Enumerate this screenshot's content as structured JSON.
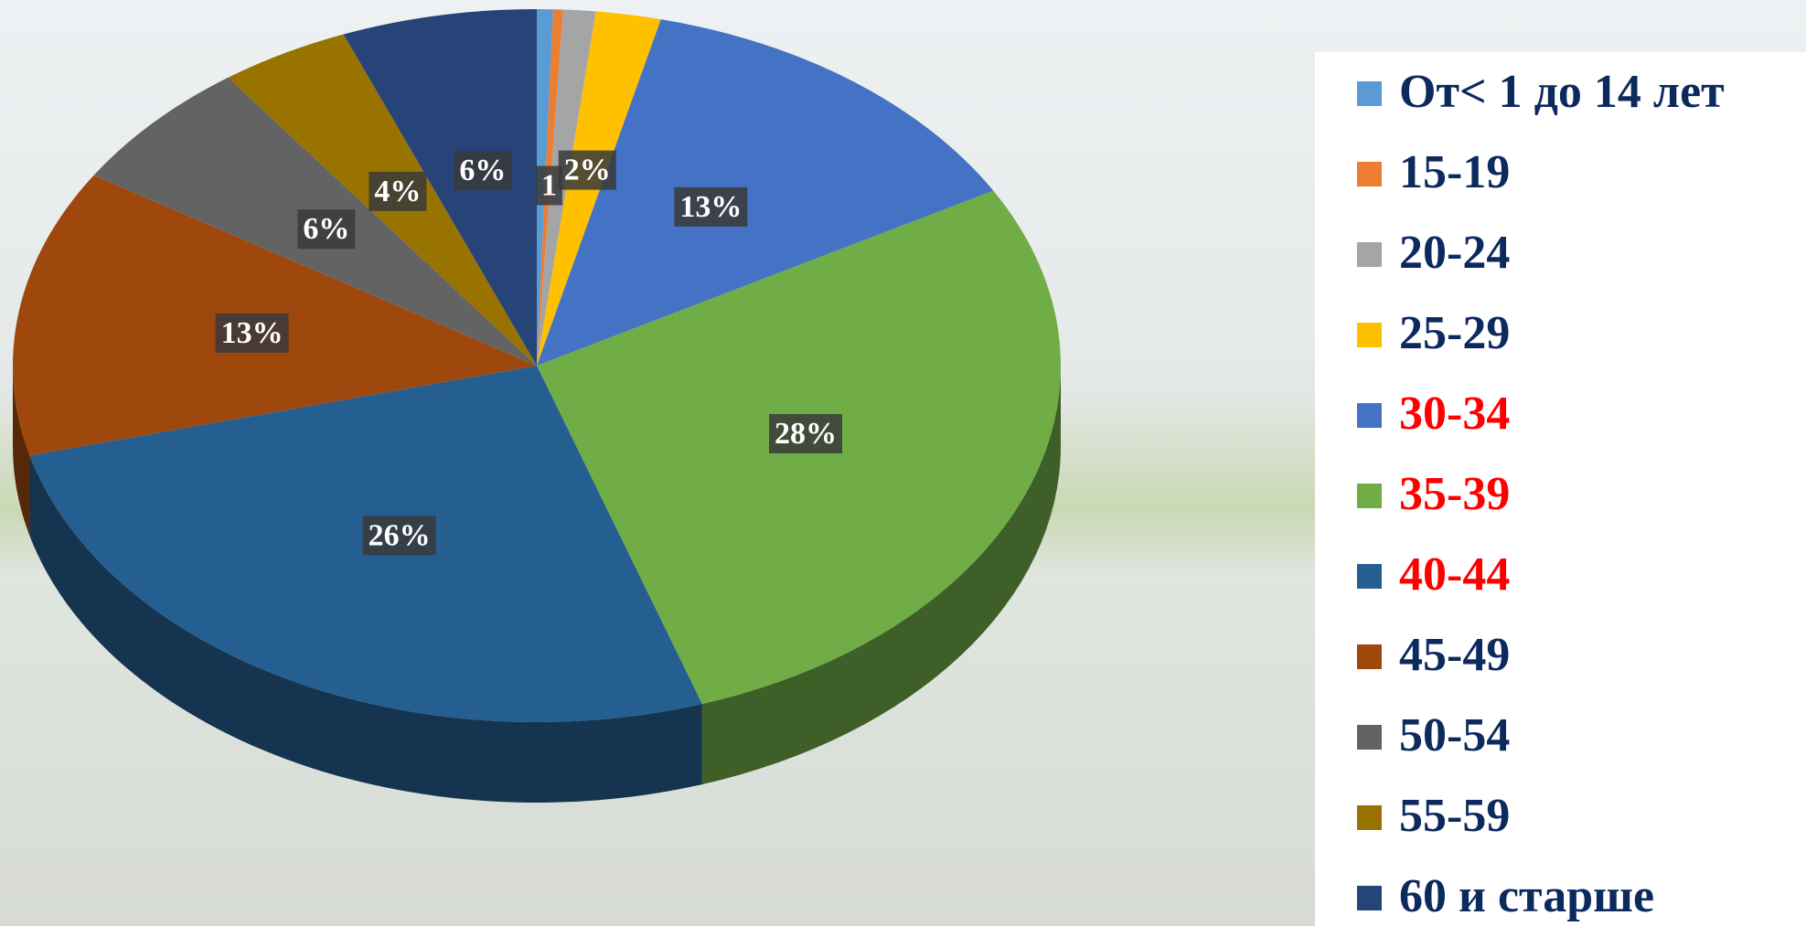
{
  "chart_data": {
    "type": "pie",
    "categories": [
      "От< 1 до 14 лет",
      "15-19",
      "20-24",
      "25-29",
      "30-34",
      "35-39",
      "40-44",
      "45-49",
      "50-54",
      "55-59",
      "60 и старше"
    ],
    "values": [
      0.5,
      0.3,
      1,
      2,
      13,
      28,
      26,
      13,
      6,
      4,
      6
    ],
    "value_labels": [
      null,
      null,
      "1",
      "2%",
      "13%",
      "28%",
      "26%",
      "13%",
      "6%",
      "4%",
      "6%"
    ],
    "colors": [
      "#5b9bd5",
      "#ed7d31",
      "#a5a5a5",
      "#ffc000",
      "#4472c4",
      "#70ad47",
      "#255e91",
      "#9e480e",
      "#636363",
      "#997300",
      "#264478"
    ],
    "legend_text_colors": [
      "#0d2a5e",
      "#0d2a5e",
      "#0d2a5e",
      "#0d2a5e",
      "#ff0000",
      "#ff0000",
      "#ff0000",
      "#0d2a5e",
      "#0d2a5e",
      "#0d2a5e",
      "#0d2a5e"
    ],
    "legend_position": "right"
  }
}
